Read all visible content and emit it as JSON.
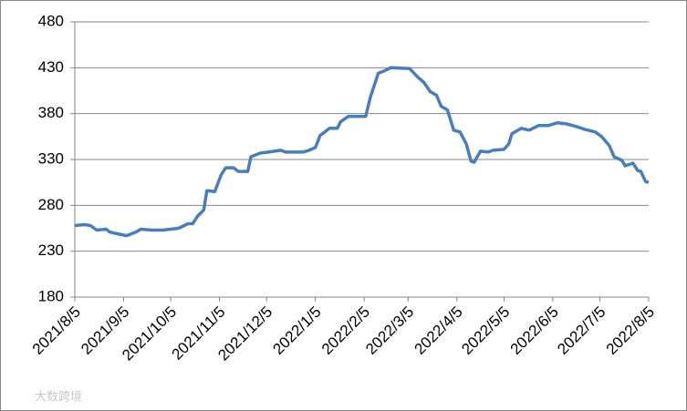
{
  "chart_data": {
    "type": "line",
    "watermark": "大数跨境",
    "x": [
      "2021/8/5",
      "2021/8/11",
      "2021/8/15",
      "2021/8/19",
      "2021/8/25",
      "2021/8/27",
      "2021/9/1",
      "2021/9/7",
      "2021/9/13",
      "2021/9/16",
      "2021/9/23",
      "2021/9/30",
      "2021/10/10",
      "2021/10/16",
      "2021/10/19",
      "2021/10/22",
      "2021/10/26",
      "2021/10/28",
      "2021/11/2",
      "2021/11/6",
      "2021/11/9",
      "2021/11/14",
      "2021/11/17",
      "2021/11/23",
      "2021/11/25",
      "2021/12/1",
      "2021/12/6",
      "2021/12/10",
      "2021/12/14",
      "2021/12/17",
      "2021/12/28",
      "2022/1/1",
      "2022/1/5",
      "2022/1/8",
      "2022/1/14",
      "2022/1/19",
      "2022/1/21",
      "2022/1/26",
      "2022/2/6",
      "2022/2/9",
      "2022/2/14",
      "2022/2/17",
      "2022/2/22",
      "2022/3/6",
      "2022/3/11",
      "2022/3/15",
      "2022/3/19",
      "2022/3/23",
      "2022/3/26",
      "2022/3/30",
      "2022/4/3",
      "2022/4/7",
      "2022/4/11",
      "2022/4/14",
      "2022/4/16",
      "2022/4/20",
      "2022/4/25",
      "2022/4/28",
      "2022/5/5",
      "2022/5/8",
      "2022/5/10",
      "2022/5/16",
      "2022/5/21",
      "2022/5/27",
      "2022/6/2",
      "2022/6/8",
      "2022/6/13",
      "2022/6/20",
      "2022/6/25",
      "2022/7/2",
      "2022/7/6",
      "2022/7/11",
      "2022/7/14",
      "2022/7/19",
      "2022/7/21",
      "2022/7/26",
      "2022/7/29",
      "2022/7/31",
      "2022/8/3",
      "2022/8/5"
    ],
    "series": [
      {
        "color": "#4a7ebb",
        "values": [
          258,
          259,
          258,
          253,
          254,
          251,
          249,
          247,
          251,
          254,
          253,
          253,
          255,
          260,
          260,
          268,
          275,
          296,
          295,
          313,
          321,
          321,
          317,
          317,
          333,
          337,
          338,
          339,
          340,
          338,
          338,
          340,
          343,
          356,
          364,
          364,
          371,
          377,
          377,
          398,
          424,
          426,
          430,
          429,
          420,
          414,
          404,
          400,
          388,
          384,
          362,
          360,
          347,
          328,
          327,
          339,
          338,
          340,
          341,
          347,
          358,
          364,
          362,
          367,
          367,
          370,
          369,
          366,
          363,
          360,
          355,
          345,
          333,
          329,
          323,
          326,
          318,
          317,
          306,
          305
        ]
      }
    ],
    "xlim": [
      "2021/8/5",
      "2022/8/5"
    ],
    "xticks": [
      "2021/8/5",
      "2021/9/5",
      "2021/10/5",
      "2021/11/5",
      "2021/12/5",
      "2022/1/5",
      "2022/2/5",
      "2022/3/5",
      "2022/4/5",
      "2022/5/5",
      "2022/6/5",
      "2022/7/5",
      "2022/8/5"
    ],
    "ylim": [
      180,
      480
    ],
    "yticks": [
      180,
      230,
      280,
      330,
      380,
      430,
      480
    ],
    "grid": true
  }
}
